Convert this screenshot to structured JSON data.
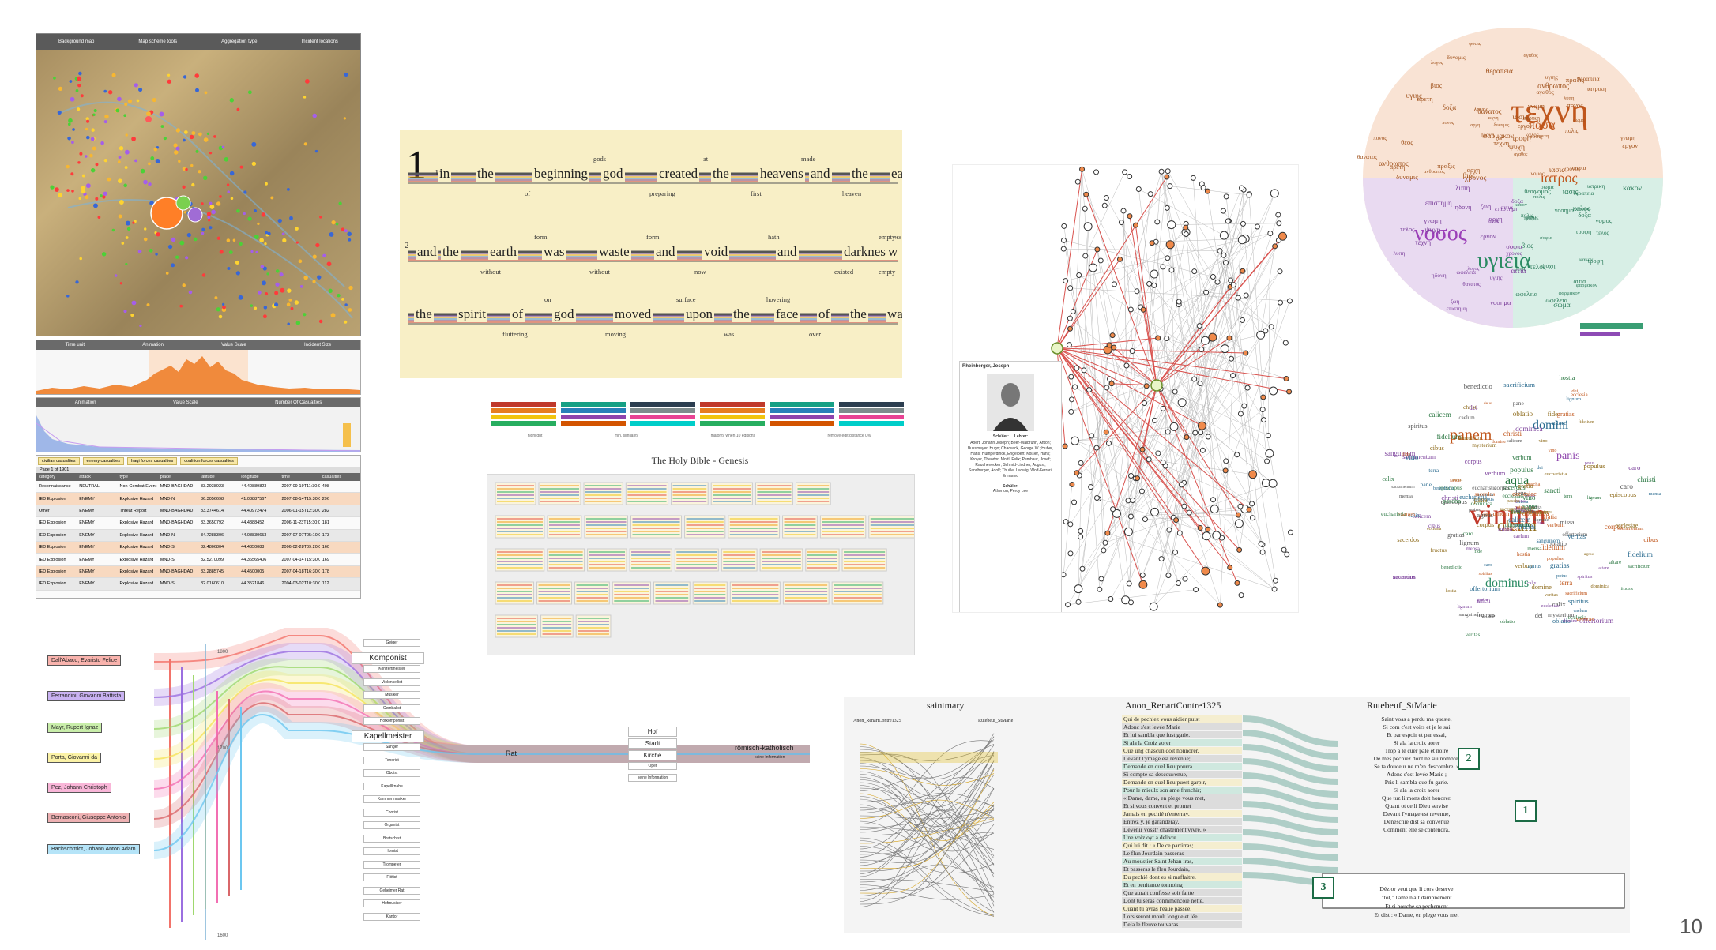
{
  "slide": {
    "page_number": "10"
  },
  "map_panel": {
    "controls": [
      "Background map",
      "Map scheme tools",
      "Aggregation type",
      "Incident locations"
    ],
    "timeline1_labels": [
      "Time unit",
      "Animation",
      "Value Scale",
      "Incident Size"
    ],
    "timeline2_labels": [
      "Animation",
      "Value Scale",
      "Number Of Casualties"
    ],
    "table": {
      "tabs": [
        "civilian casualties",
        "enemy casualties",
        "Iraqi forces casualties",
        "coalition forces casualties"
      ],
      "pager": "Page 1 of 1901",
      "headers": [
        "category",
        "attack",
        "type",
        "place",
        "latitude",
        "longitude",
        "time",
        "casualties"
      ],
      "rows": [
        [
          "Reconnaissance",
          "NEUTRAL",
          "Non-Combat Event",
          "MND-BAGHDAD",
          "33.2938923",
          "44.40889823",
          "2007-09-19T11:30:00Z",
          "408"
        ],
        [
          "IED Explosion",
          "ENEMY",
          "Explosive Hazard",
          "MND-N",
          "36.3056698",
          "41.08887567",
          "2007-08-14T15:30:00Z",
          "296"
        ],
        [
          "Other",
          "ENEMY",
          "Threat Report",
          "MND-BAGHDAD",
          "33.3744614",
          "44.40972474",
          "2006-01-15T12:30:00Z",
          "282"
        ],
        [
          "IED Explosion",
          "ENEMY",
          "Explosive Hazard",
          "MND-BAGHDAD",
          "33.3650792",
          "44.4388452",
          "2006-11-23T15:30:00Z",
          "181"
        ],
        [
          "IED Explosion",
          "ENEMY",
          "Explosive Hazard",
          "MND-N",
          "34.7288306",
          "44.08830653",
          "2007-07-07T05:10:00Z",
          "173"
        ],
        [
          "IED Explosion",
          "ENEMY",
          "Explosive Hazard",
          "MND-S",
          "32.4806804",
          "44.4350088",
          "2006-02-28T09:20:00Z",
          "160"
        ],
        [
          "IED Explosion",
          "ENEMY",
          "Explosive Hazard",
          "MND-S",
          "32.5270099",
          "44.36565406",
          "2007-04-14T15:30:00Z",
          "169"
        ],
        [
          "IED Explosion",
          "ENEMY",
          "Explosive Hazard",
          "MND-BAGHDAD",
          "33.2885745",
          "44.4500005",
          "2007-04-18T16:30:00Z",
          "178"
        ],
        [
          "IED Explosion",
          "ENEMY",
          "Explosive Hazard",
          "MND-S",
          "32.0160610",
          "44.3521846",
          "2004-03-02T10:30:00Z",
          "112"
        ]
      ]
    }
  },
  "bible_graph": {
    "verse1_num": "1",
    "row1_num": "1",
    "row2_num": "2",
    "row1": [
      "in",
      "the",
      "beginning",
      "god",
      "created",
      "the",
      "heavens",
      "and",
      "the",
      "earth"
    ],
    "row1_alts": [
      "of",
      "gods",
      "preparing",
      "at",
      "first",
      "made",
      "heaven"
    ],
    "row2": [
      "and",
      "the",
      "earth",
      "was",
      "waste",
      "and",
      "void",
      "and",
      "darkness",
      "w"
    ],
    "row2_alts": [
      "without",
      "form",
      "without",
      "form",
      "now",
      "hath",
      "existed",
      "formless",
      "empty",
      "empty"
    ],
    "row3": [
      "the",
      "spirit",
      "of",
      "god",
      "moved",
      "upon",
      "the",
      "face",
      "of",
      "the",
      "waters"
    ],
    "row3_alts": [
      "fluttering",
      "on",
      "moving",
      "surface",
      "was",
      "hovering",
      "over"
    ]
  },
  "legend": {
    "controls": [
      "highlight",
      "min. similarity",
      "majority when 10 editions",
      "remove edit distance 0%"
    ]
  },
  "genesis": {
    "title": "The Holy Bible - Genesis"
  },
  "network": {
    "card": {
      "name": "Rheinberger, Joseph",
      "role_title": "Schüler: ... Lehrer:",
      "students": "Abert, Johann Joseph; Beer-Walbrunn, Anton; Bussmeyer, Hugo; Chadwick, George W.; Huber, Hans; Humperdinck, Engelbert; Kößler, Hans; Kroyer, Theodor; Mottl, Felix; Pembaur, Josef; Rauchenecker; Schmid-Lindner, August; Sandberger, Adolf; Thuille, Ludwig; Wolf-Ferrari, Ermanno",
      "teacher_label": "Schüler:",
      "teacher": "Atherton, Percy Lee"
    }
  },
  "greek_cloud": {
    "big_words": [
      "τεχνη",
      "νοσος",
      "υγιεια",
      "ιατρος",
      "πασα"
    ],
    "small_words": [
      "φυσις",
      "σωμα",
      "λογος",
      "γνωμη",
      "ψυχη",
      "αρετη",
      "θεος",
      "αιτια",
      "πονος",
      "δυναμις",
      "τροφη",
      "φαρμακον",
      "χρονος",
      "ανθρωπος",
      "καλος",
      "αγαθος",
      "νοσημα",
      "ιασις",
      "σοφια",
      "δοξα",
      "εργον",
      "τελος",
      "αρχη",
      "κακον",
      "ωφελεια",
      "θεραπεια",
      "ιατρικη",
      "υγιης",
      "ζωη",
      "θανατος",
      "τεχνη",
      "πολις",
      "νομος",
      "ηδονη",
      "επιστημη",
      "πραξις",
      "λυπη",
      "βιος"
    ]
  },
  "latin_cloud": {
    "big_words": [
      "vinum",
      "panem",
      "oleum",
      "aqua",
      "domini",
      "panis",
      "dominus"
    ],
    "small_words": [
      "ecclesia",
      "sacerdos",
      "corpus",
      "sanguinem",
      "calicem",
      "oblatio",
      "fidelium",
      "christi",
      "sacramentum",
      "missa",
      "altare",
      "episcopus",
      "populus",
      "sancti",
      "domine",
      "gratias",
      "mensa",
      "eucharistia",
      "pascha",
      "dominica",
      "cibus",
      "potus",
      "lignum",
      "fructus",
      "terra",
      "hostia",
      "mysterium",
      "dei",
      "caro",
      "benedictio",
      "sacrificium",
      "verbum",
      "deus",
      "spiritus",
      "calix",
      "pane",
      "vino",
      "fide",
      "gratia",
      "caelum",
      "offertorium",
      "agnus",
      "veritas",
      "ecclesiae"
    ]
  },
  "storyline": {
    "persons": [
      "Dall'Abaco, Evaristo Felice",
      "Ferrandini, Giovanni Battista",
      "Mayr, Rupert Ignaz",
      "Porta, Giovanni da",
      "Pez, Johann Christoph",
      "Bernasconi, Giuseppe Antonio",
      "Bachschmidt, Johann Anton Adam"
    ],
    "axis_top": "1800",
    "axis_mid": "1700",
    "axis_bottom": "1600",
    "roles": [
      "Geiger",
      "Komponist",
      "Konzertmeister",
      "Violoncellist",
      "Musiker",
      "Cembalist",
      "Hofkomponist",
      "Kapellmeister",
      "Sänger",
      "Tenorist",
      "Oboist",
      "Kapellknabe",
      "Kammermusiker",
      "Chorist",
      "Organist",
      "Bratschist",
      "Hornist",
      "Trompeter",
      "Flötist",
      "Geheimer Rat",
      "Hofmusiker",
      "Kantor"
    ],
    "middle": "Rat",
    "places": [
      "Hof",
      "Stadt",
      "Kirche",
      "Oper",
      "keine Information"
    ],
    "confessions": [
      "römisch-katholisch",
      "keine Information"
    ]
  },
  "text_align": {
    "overview_title": "saintmary",
    "overview_left": "Anon_RenartContre1325",
    "overview_right": "Rutebeuf_StMarie",
    "left_title": "Anon_RenartContre1325",
    "right_title": "Rutebeuf_StMarie",
    "left_lines": [
      "Qui de pechiez vous aidier puist",
      "Adonc s'est levée Marie",
      "Et lui sambla que fust garie.",
      "Si ala la Croiz aorer",
      "Que ung chascun doit honnorer.",
      "Devant l'ymage est revenue;",
      "Demande en quel lieu pourra",
      "Si compte sa descouvenue,",
      "Demande en quel lieu puest garpir,",
      "Pour le mieulx son ame franchir;",
      "« Dame, dame, en plege vous met,",
      "Et si vous convent et promet",
      "Jamais en pechié n'enterray.",
      "Entrez y, je garanderay.",
      "Devenir vosstr chastement vivre. »",
      "Une voiz oyt a delivre",
      "Qui lui dit : « De ce partirras;",
      "Le flun Jourdain passeras",
      "Au moustier Saint Jehan iras,",
      "Et passeras le fleu Jourdain,",
      "Du pechié dont es si maffaitre.",
      "Et en penitance tonnoing",
      "Que aurait confesse soit faitte",
      "Dont tu seras conmmencoie nette.",
      "Quant tu avras l'eaue passée,",
      "Lors seront moult longue et lée",
      "Dela le fleuve touvaras."
    ],
    "right_lines": [
      "Saint voas a perdu ma queste,",
      "Si com c'est voirs et je le sai",
      "Et par espoir et par essai,",
      "Si ala la croix aorer",
      "Trop a le cuer pale et noiré",
      "De mes pechiez dont ne sui nombre,",
      "Se ta douceur ne m'en descombre. »",
      "Adonc s'est levée Marie ;",
      "Pris li sambla que fu garie.",
      "Si ala la croiz aorer",
      "Que tuz li mons doit honorer.",
      "Quant ot ce li Dieu servise",
      "Devant l'ymage est revenue,",
      "Deneschié dist sa convenue",
      "Comment elle se contendra,",
      "Dèz or veut que li cors deserve",
      "\"tot,\" l'ame n'ait dampnement",
      "Et si bouche sa pechement",
      "Et dist : « Dame, en plege vous met"
    ],
    "badges": [
      "2",
      "1",
      "3"
    ]
  }
}
